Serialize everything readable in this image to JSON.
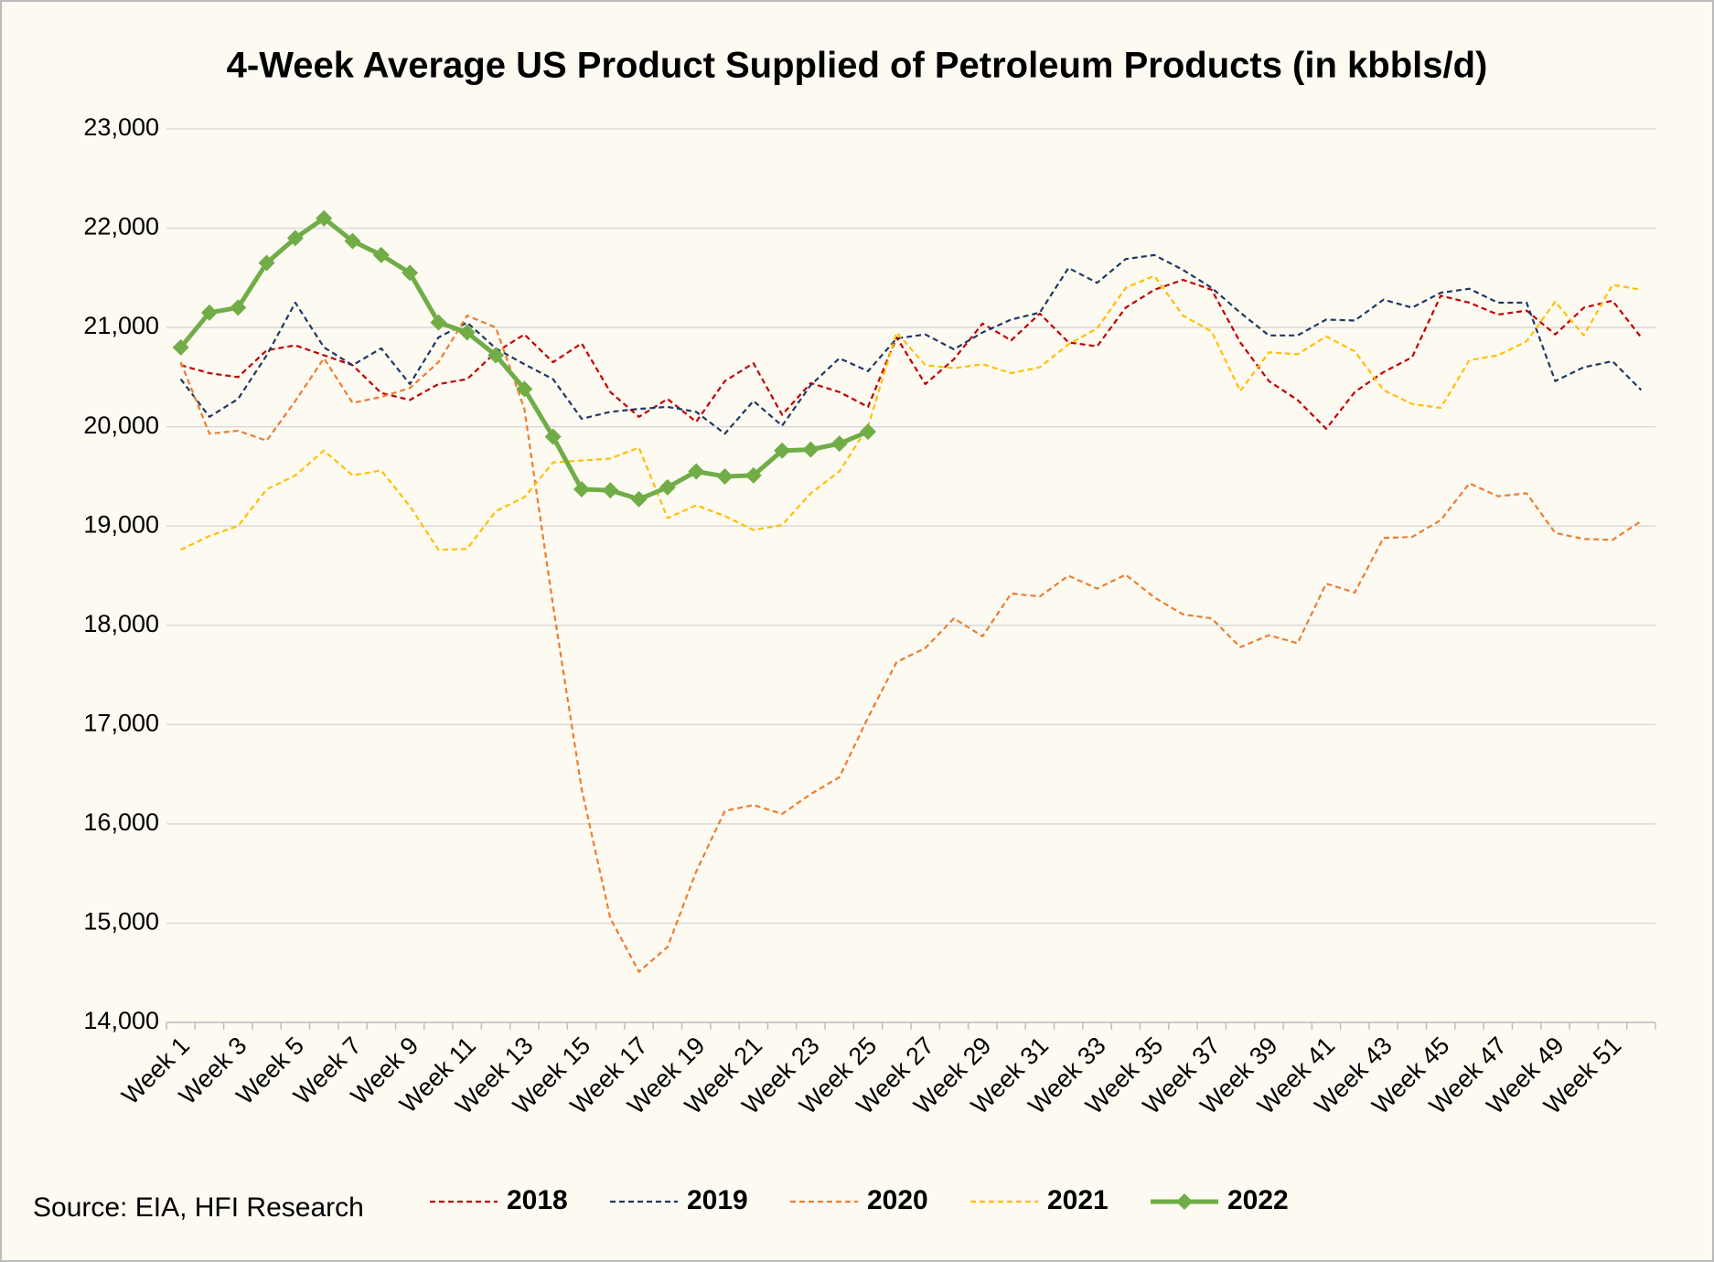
{
  "chart_data": {
    "type": "line",
    "title": "4-Week Average US Product Supplied of Petroleum Products (in kbbls/d)",
    "source": "Source: EIA, HFI Research",
    "categories": [
      "Week 1",
      null,
      "Week 3",
      null,
      "Week 5",
      null,
      "Week 7",
      null,
      "Week 9",
      null,
      "Week 11",
      null,
      "Week 13",
      null,
      "Week 15",
      null,
      "Week 17",
      null,
      "Week 19",
      null,
      "Week 21",
      null,
      "Week 23",
      null,
      "Week 25",
      null,
      "Week 27",
      null,
      "Week 29",
      null,
      "Week 31",
      null,
      "Week 33",
      null,
      "Week 35",
      null,
      "Week 37",
      null,
      "Week 39",
      null,
      "Week 41",
      null,
      "Week 43",
      null,
      "Week 45",
      null,
      "Week 47",
      null,
      "Week 49",
      null,
      "Week 51",
      null
    ],
    "series": [
      {
        "name": "2018",
        "color": "#c00000",
        "dashed": true,
        "values": [
          20620,
          20540,
          20500,
          20770,
          20820,
          20720,
          20620,
          20340,
          20270,
          20430,
          20480,
          20750,
          20930,
          20650,
          20840,
          20350,
          20100,
          20280,
          20050,
          20460,
          20640,
          20120,
          20440,
          20350,
          20200,
          20900,
          20430,
          20680,
          21040,
          20870,
          21140,
          20850,
          20810,
          21200,
          21380,
          21480,
          21380,
          20850,
          20460,
          20270,
          19980,
          20350,
          20550,
          20700,
          21320,
          21250,
          21130,
          21170,
          20930,
          21200,
          21270,
          20900
        ]
      },
      {
        "name": "2019",
        "color": "#1f3864",
        "dashed": true,
        "values": [
          20480,
          20100,
          20280,
          20720,
          21250,
          20800,
          20620,
          20790,
          20430,
          20900,
          21050,
          20790,
          20630,
          20480,
          20080,
          20150,
          20180,
          20200,
          20150,
          19930,
          20260,
          20010,
          20420,
          20690,
          20560,
          20890,
          20930,
          20780,
          20950,
          21080,
          21150,
          21600,
          21450,
          21690,
          21730,
          21580,
          21400,
          21150,
          20920,
          20920,
          21080,
          21070,
          21280,
          21200,
          21350,
          21390,
          21250,
          21250,
          20460,
          20600,
          20660,
          20370
        ]
      },
      {
        "name": "2020",
        "color": "#ed7d31",
        "dashed": true,
        "values": [
          20650,
          19930,
          19960,
          19860,
          20260,
          20690,
          20240,
          20300,
          20390,
          20650,
          21120,
          21000,
          20180,
          18200,
          16350,
          15050,
          14510,
          14760,
          15520,
          16130,
          16190,
          16100,
          16300,
          16470,
          17070,
          17630,
          17770,
          18070,
          17890,
          18320,
          18290,
          18500,
          18370,
          18510,
          18280,
          18110,
          18070,
          17780,
          17900,
          17820,
          18420,
          18330,
          18880,
          18890,
          19060,
          19430,
          19300,
          19330,
          18930,
          18870,
          18860,
          19050
        ]
      },
      {
        "name": "2021",
        "color": "#ffc000",
        "dashed": true,
        "values": [
          18760,
          18900,
          19000,
          19370,
          19510,
          19760,
          19510,
          19560,
          19200,
          18760,
          18770,
          19150,
          19290,
          19640,
          19660,
          19680,
          19790,
          19080,
          19210,
          19100,
          18960,
          19010,
          19330,
          19550,
          20000,
          20950,
          20620,
          20590,
          20630,
          20540,
          20600,
          20830,
          20990,
          21400,
          21520,
          21120,
          20960,
          20360,
          20750,
          20730,
          20910,
          20760,
          20370,
          20230,
          20190,
          20670,
          20720,
          20860,
          21260,
          20920,
          21430,
          21380
        ]
      },
      {
        "name": "2022",
        "color": "#70ad47",
        "dashed": false,
        "markers": true,
        "values": [
          20800,
          21150,
          21200,
          21650,
          21900,
          22100,
          21870,
          21730,
          21550,
          21050,
          20950,
          20720,
          20380,
          19900,
          19370,
          19360,
          19270,
          19390,
          19550,
          19500,
          19510,
          19760,
          19770,
          19830,
          19950,
          null,
          null,
          null,
          null,
          null,
          null,
          null,
          null,
          null,
          null,
          null,
          null,
          null,
          null,
          null,
          null,
          null,
          null,
          null,
          null,
          null,
          null,
          null,
          null,
          null,
          null,
          null
        ]
      }
    ],
    "ylim": [
      14000,
      23000
    ],
    "yticks": [
      {
        "value": 14000,
        "label": "14,000"
      },
      {
        "value": 15000,
        "label": "15,000"
      },
      {
        "value": 16000,
        "label": "16,000"
      },
      {
        "value": 17000,
        "label": "17,000"
      },
      {
        "value": 18000,
        "label": "18,000"
      },
      {
        "value": 19000,
        "label": "19,000"
      },
      {
        "value": 20000,
        "label": "20,000"
      },
      {
        "value": 21000,
        "label": "21,000"
      },
      {
        "value": 22000,
        "label": "22,000"
      },
      {
        "value": 23000,
        "label": "23,000"
      }
    ],
    "grid": true,
    "legend": "bottom"
  }
}
